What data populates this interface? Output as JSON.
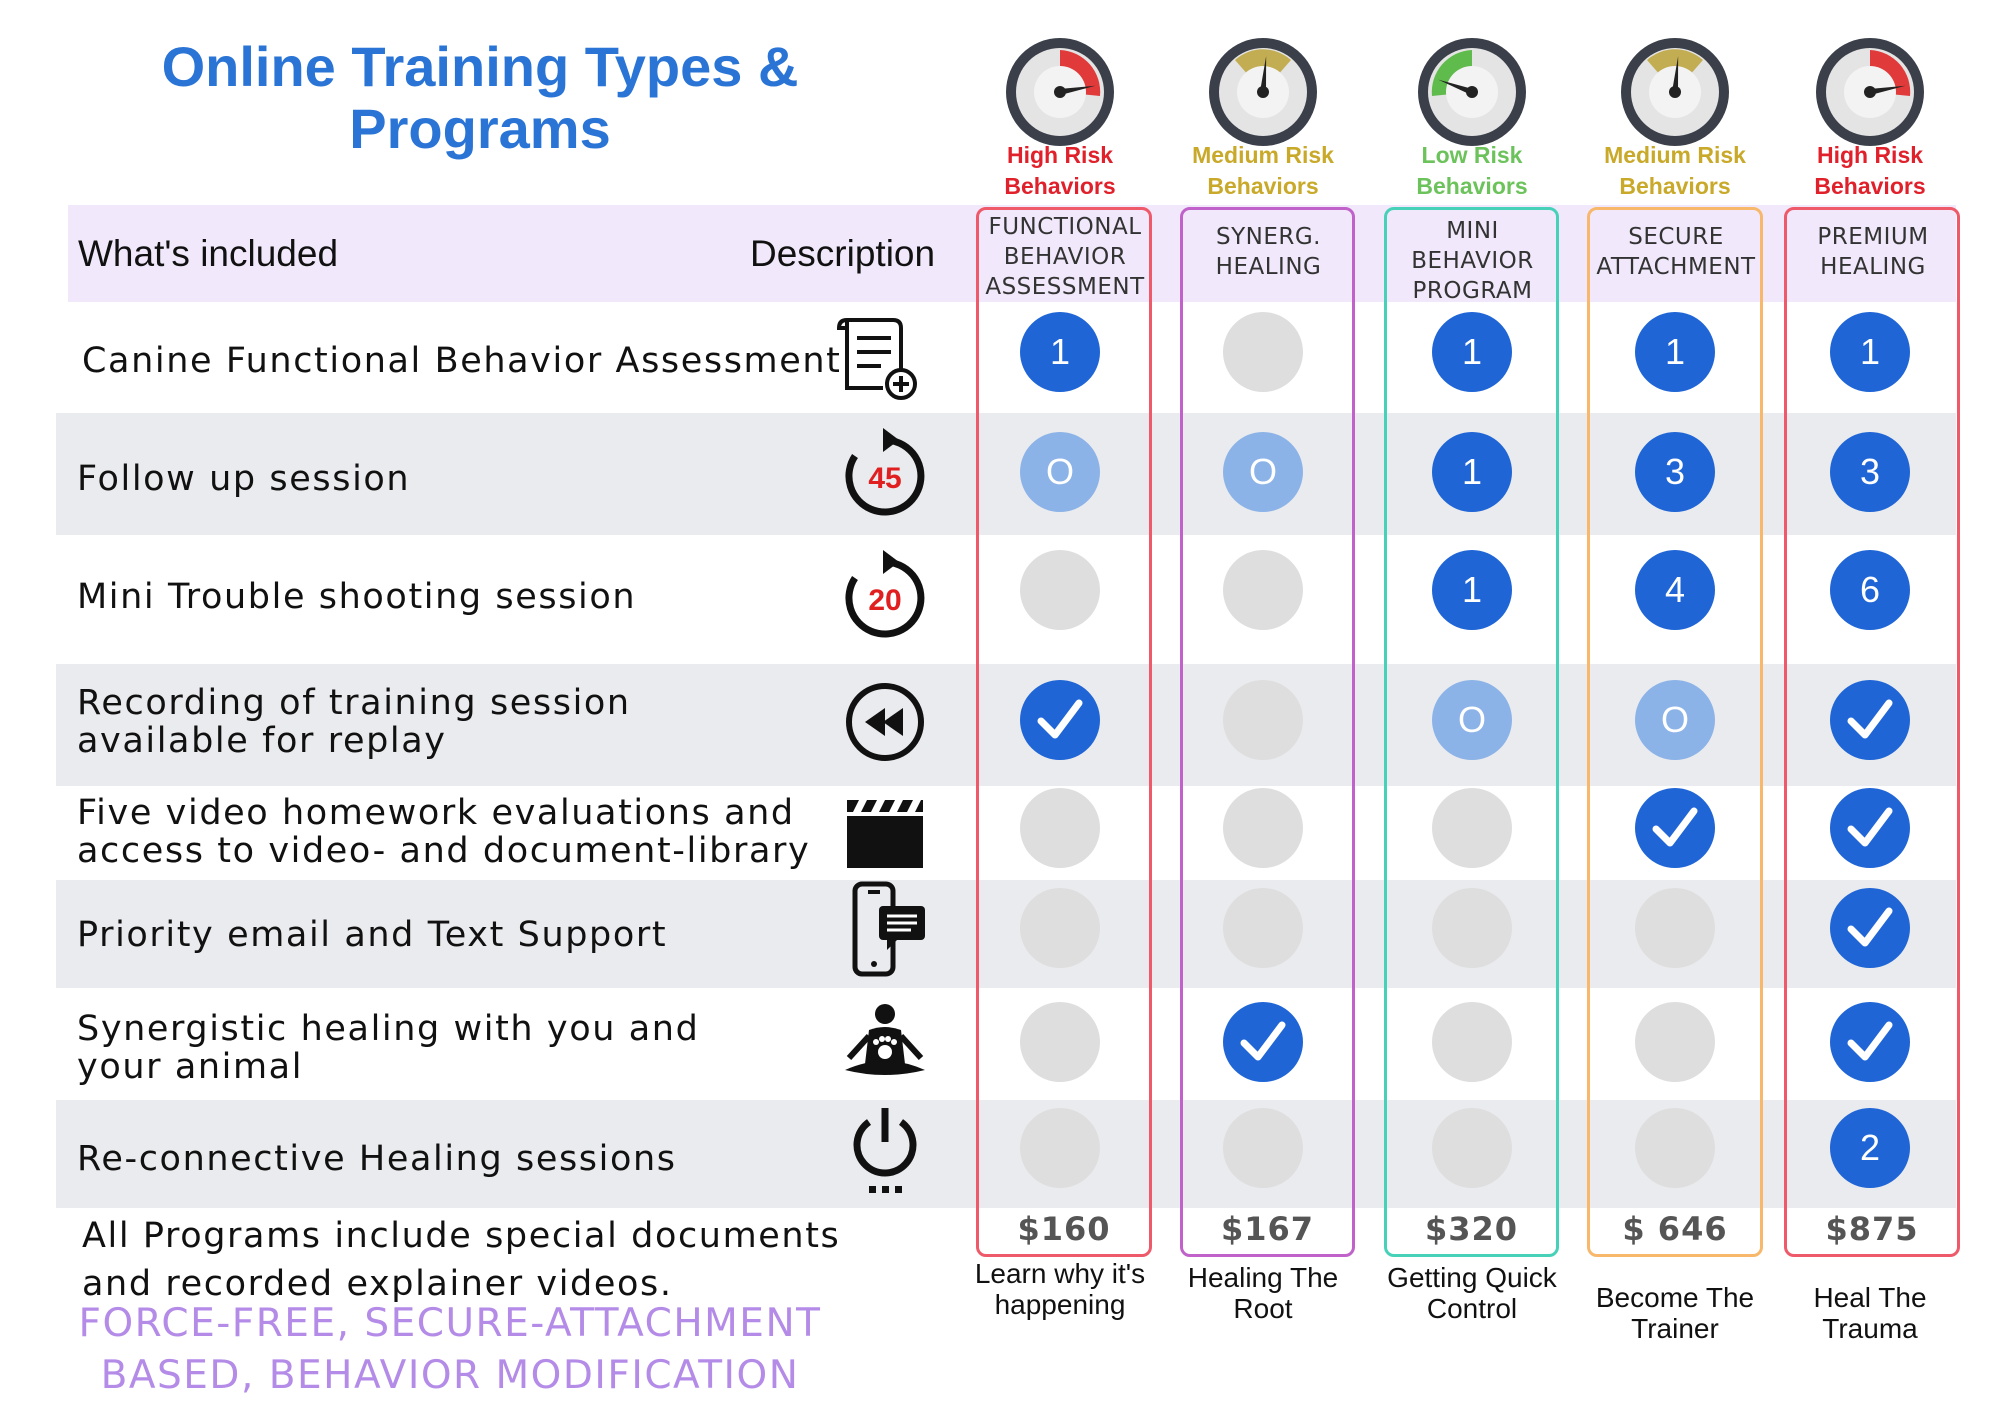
{
  "title_line1": "Online Training Types &",
  "title_line2": "Programs",
  "header": {
    "included": "What's included",
    "description": "Description"
  },
  "programs": [
    {
      "risk1": "High Risk",
      "risk2": "Behaviors",
      "risk_color": "#e0202a",
      "name": "FUNCTIONAL BEHAVIOR ASSESSMENT",
      "border": "#ee5a6a",
      "price": "$160",
      "tagline": "Learn why it's happening"
    },
    {
      "risk1": "Medium Risk",
      "risk2": "Behaviors",
      "risk_color": "#c9a92a",
      "name": "SYNERG. HEALING",
      "border": "#c062c9",
      "price": "$167",
      "tagline": "Healing The Root"
    },
    {
      "risk1": "Low Risk",
      "risk2": "Behaviors",
      "risk_color": "#6cc35b",
      "name": "MINI BEHAVIOR PROGRAM",
      "border": "#48d1b9",
      "price": "$320",
      "tagline": "Getting Quick Control"
    },
    {
      "risk1": "Medium Risk",
      "risk2": "Behaviors",
      "risk_color": "#c9a92a",
      "name": "SECURE ATTACHMENT",
      "border": "#f7b86c",
      "price": "$ 646",
      "tagline": "Become The Trainer"
    },
    {
      "risk1": "High Risk",
      "risk2": "Behaviors",
      "risk_color": "#e0202a",
      "name": "PREMIUM HEALING",
      "border": "#ee5a6a",
      "price": "$875",
      "tagline": "Heal The Trauma"
    }
  ],
  "features": [
    {
      "label": "Canine Functional Behavior Assessment",
      "icon": "document-plus-icon",
      "cells": [
        "1",
        "",
        "1",
        "1",
        "1"
      ]
    },
    {
      "label": "Follow up session",
      "icon": "timer-45-icon",
      "icon_text": "45",
      "cells": [
        "O",
        "O",
        "1",
        "3",
        "3"
      ]
    },
    {
      "label": "Mini Trouble shooting session",
      "icon": "timer-20-icon",
      "icon_text": "20",
      "cells": [
        "",
        "",
        "1",
        "4",
        "6"
      ]
    },
    {
      "label_line1": "Recording of training session",
      "label_line2": "available for replay",
      "icon": "rewind-icon",
      "cells": [
        "check",
        "",
        "O",
        "O",
        "check"
      ]
    },
    {
      "label_line1": "Five video homework evaluations and",
      "label_line2": "access to video- and document-library",
      "icon": "clapperboard-icon",
      "cells": [
        "",
        "",
        "",
        "check",
        "check"
      ]
    },
    {
      "label": "Priority email and Text Support",
      "icon": "phone-message-icon",
      "cells": [
        "",
        "",
        "",
        "",
        "check"
      ]
    },
    {
      "label_line1": "Synergistic healing with you and",
      "label_line2": "your animal",
      "icon": "meditation-icon",
      "cells": [
        "",
        "check",
        "",
        "",
        "check"
      ]
    },
    {
      "label": "Re-connective Healing sessions",
      "icon": "power-icon",
      "cells": [
        "",
        "",
        "",
        "",
        "2"
      ]
    }
  ],
  "footer_line1": "All Programs include special documents",
  "footer_line2": "and recorded explainer videos.",
  "slogan_line1": "FORCE-FREE, SECURE-ATTACHMENT",
  "slogan_line2": "BASED, BEHAVIOR MODIFICATION",
  "colors": {
    "blue": "#1f65d6",
    "light_blue": "#8cb3e8",
    "gray": "#dedede",
    "title": "#2a74d6",
    "slogan": "#b48ce8"
  }
}
